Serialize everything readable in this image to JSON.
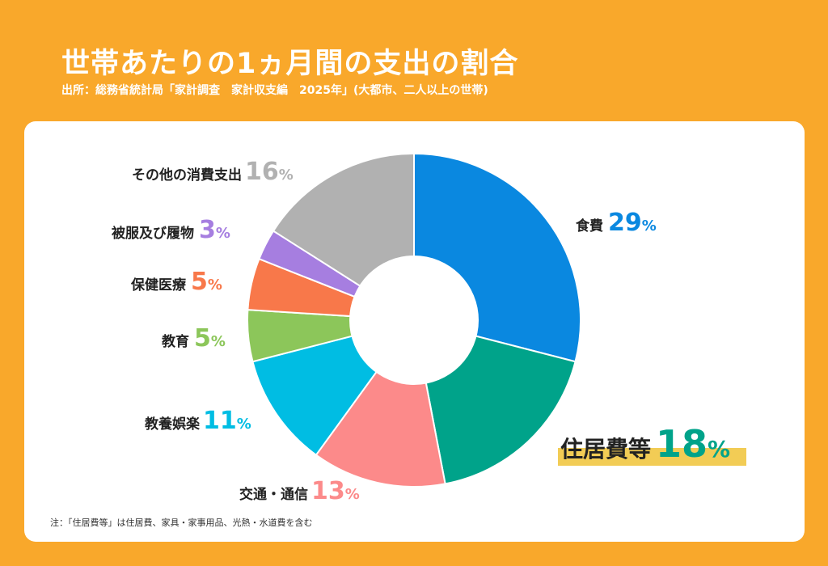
{
  "header": {
    "title": "世帯あたりの1ヵ月間の支出の割合",
    "source": "出所：総務省統計局「家計調査　家計収支編　2025年」(大都市、二人以上の世帯)"
  },
  "footnote": "注：「住居費等」は住居費、家具・家事用品、光熱・水道費を含む",
  "colors": {
    "background": "#f9a82b",
    "highlight": "#f2cc55",
    "label_text": "#222222"
  },
  "chart_data": {
    "type": "pie",
    "subtype": "donut",
    "title": "世帯あたりの1ヵ月間の支出の割合",
    "unit": "%",
    "start": "12 o'clock, clockwise",
    "categories": [
      "食費",
      "住居費等",
      "交通・通信",
      "教養娯楽",
      "教育",
      "保健医療",
      "被服及び履物",
      "その他の消費支出"
    ],
    "values": [
      29,
      18,
      13,
      11,
      5,
      5,
      3,
      16
    ],
    "colors": [
      "#0a88e0",
      "#00a38a",
      "#fc8a8a",
      "#00bde3",
      "#8cc65a",
      "#f8784a",
      "#a67ee0",
      "#b1b1b1"
    ],
    "highlighted": "住居費等"
  }
}
